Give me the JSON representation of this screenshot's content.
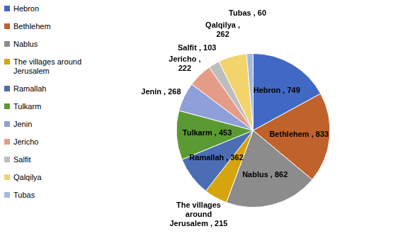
{
  "chart_data": {
    "type": "pie",
    "categories": [
      "Hebron",
      "Bethlehem",
      "Nablus",
      "The villages around Jerusalem",
      "Ramallah",
      "Tulkarm",
      "Jenin",
      "Jericho",
      "Salfit",
      "Qalqilya",
      "Tubas"
    ],
    "values": [
      749,
      833,
      862,
      215,
      362,
      453,
      268,
      222,
      103,
      262,
      60
    ],
    "value_labels": [
      "Hebron , 749",
      "Bethlehem , 833",
      "Nablus , 862",
      "The villages around Jerusalem , 215",
      "Ramallah , 362",
      "Tulkarm , 453",
      "Jenin , 268",
      "Jericho , 222",
      "Salfit , 103",
      "Qalqilya , 262",
      "Tubas , 60"
    ],
    "colors": [
      "#4169c4",
      "#c0622b",
      "#8c8c8c",
      "#d6a40c",
      "#4a6db3",
      "#5b9a32",
      "#8e9fd9",
      "#e59c86",
      "#bdbdbd",
      "#f3d36c",
      "#a6b7e0"
    ],
    "legend": "left",
    "data_labels": true
  }
}
